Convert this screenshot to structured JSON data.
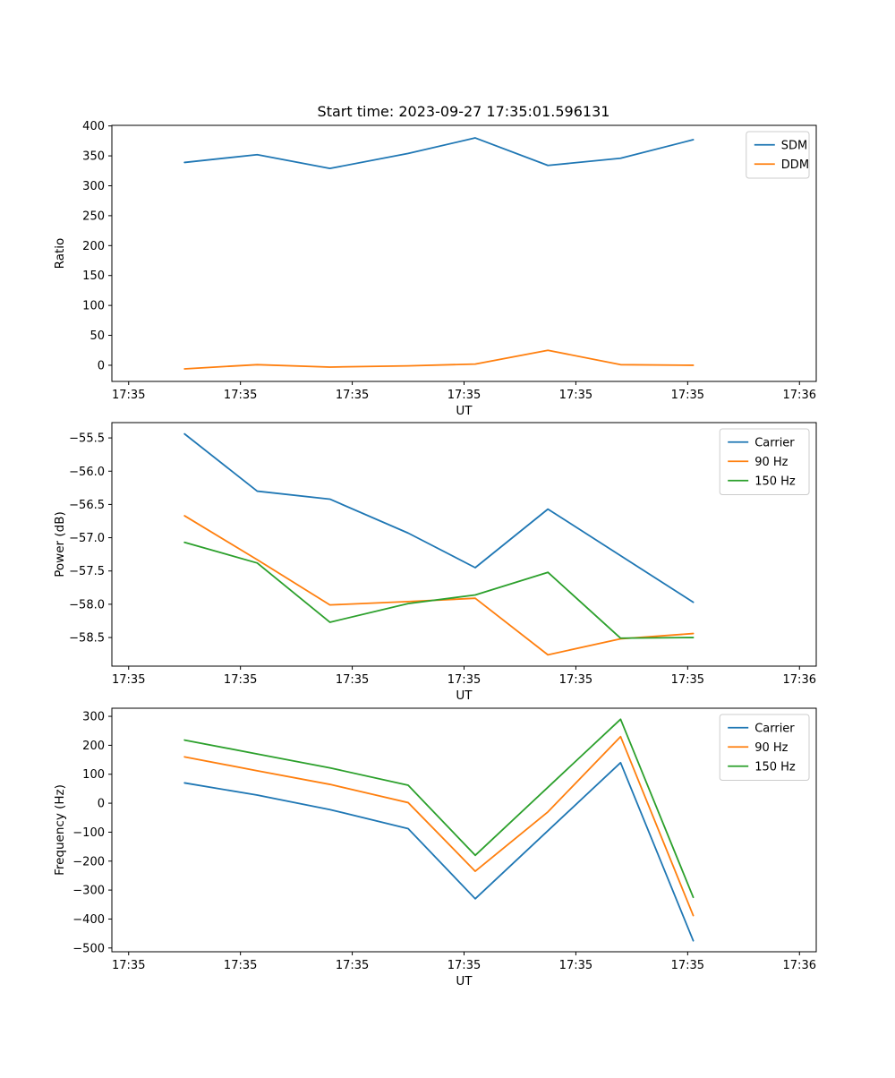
{
  "figure": {
    "title": "Start time: 2023-09-27 17:35:01.596131",
    "background": "#ffffff"
  },
  "colors": {
    "blue": "#1f77b4",
    "orange": "#ff7f0e",
    "green": "#2ca02c",
    "axis": "#000000",
    "legend_border": "#cccccc"
  },
  "chart_data": [
    {
      "id": "ratio",
      "type": "line",
      "title": "Start time: 2023-09-27 17:35:01.596131",
      "xlabel": "UT",
      "ylabel": "Ratio",
      "grid": false,
      "legend_position": "upper right",
      "xlim": [
        -1.5,
        61.5
      ],
      "ylim": [
        -27,
        401
      ],
      "xticks": {
        "values": [
          0,
          10,
          20,
          30,
          40,
          50,
          60
        ],
        "labels": [
          "17:35",
          "17:35",
          "17:35",
          "17:35",
          "17:35",
          "17:35",
          "17:36"
        ]
      },
      "yticks": {
        "values": [
          0,
          50,
          100,
          150,
          200,
          250,
          300,
          350,
          400
        ],
        "labels": [
          "0",
          "50",
          "100",
          "150",
          "200",
          "250",
          "300",
          "350",
          "400"
        ]
      },
      "x": [
        5,
        11.5,
        18,
        25,
        31,
        37.5,
        44,
        50.5
      ],
      "series": [
        {
          "name": "SDM",
          "color": "#1f77b4",
          "values": [
            339,
            352,
            329,
            354,
            380,
            334,
            346,
            377
          ]
        },
        {
          "name": "DDM",
          "color": "#ff7f0e",
          "values": [
            -6,
            1,
            -3,
            -1,
            2,
            25,
            1,
            0
          ]
        }
      ]
    },
    {
      "id": "power",
      "type": "line",
      "title": "",
      "xlabel": "UT",
      "ylabel": "Power (dB)",
      "grid": false,
      "legend_position": "upper right",
      "xlim": [
        -1.5,
        61.5
      ],
      "ylim": [
        -58.93,
        -55.27
      ],
      "xticks": {
        "values": [
          0,
          10,
          20,
          30,
          40,
          50,
          60
        ],
        "labels": [
          "17:35",
          "17:35",
          "17:35",
          "17:35",
          "17:35",
          "17:35",
          "17:36"
        ]
      },
      "yticks": {
        "values": [
          -55.5,
          -56.0,
          -56.5,
          -57.0,
          -57.5,
          -58.0,
          -58.5
        ],
        "labels": [
          "−55.5",
          "−56.0",
          "−56.5",
          "−57.0",
          "−57.5",
          "−58.0",
          "−58.5"
        ]
      },
      "x": [
        5,
        11.5,
        18,
        25,
        31,
        37.5,
        44,
        50.5
      ],
      "series": [
        {
          "name": "Carrier",
          "color": "#1f77b4",
          "values": [
            -55.44,
            -56.3,
            -56.42,
            -56.93,
            -57.45,
            -56.57,
            -57.27,
            -57.97
          ]
        },
        {
          "name": "90 Hz",
          "color": "#ff7f0e",
          "values": [
            -56.67,
            -57.33,
            -58.01,
            -57.96,
            -57.91,
            -58.76,
            -58.52,
            -58.44
          ]
        },
        {
          "name": "150 Hz",
          "color": "#2ca02c",
          "values": [
            -57.07,
            -57.38,
            -58.27,
            -57.99,
            -57.86,
            -57.52,
            -58.51,
            -58.5
          ]
        }
      ]
    },
    {
      "id": "frequency",
      "type": "line",
      "title": "",
      "xlabel": "UT",
      "ylabel": "Frequency (Hz)",
      "grid": false,
      "legend_position": "upper right",
      "xlim": [
        -1.5,
        61.5
      ],
      "ylim": [
        -513,
        328
      ],
      "xticks": {
        "values": [
          0,
          10,
          20,
          30,
          40,
          50,
          60
        ],
        "labels": [
          "17:35",
          "17:35",
          "17:35",
          "17:35",
          "17:35",
          "17:35",
          "17:36"
        ]
      },
      "yticks": {
        "values": [
          300,
          200,
          100,
          0,
          -100,
          -200,
          -300,
          -400,
          -500
        ],
        "labels": [
          "300",
          "200",
          "100",
          "0",
          "−100",
          "−200",
          "−300",
          "−400",
          "−500"
        ]
      },
      "x": [
        5,
        11.5,
        18,
        25,
        31,
        37.5,
        44,
        50.5
      ],
      "series": [
        {
          "name": "Carrier",
          "color": "#1f77b4",
          "values": [
            70,
            28,
            -22,
            -88,
            -330,
            -95,
            140,
            -475
          ]
        },
        {
          "name": "90 Hz",
          "color": "#ff7f0e",
          "values": [
            160,
            112,
            65,
            2,
            -235,
            -30,
            230,
            -388
          ]
        },
        {
          "name": "150 Hz",
          "color": "#2ca02c",
          "values": [
            218,
            170,
            122,
            62,
            -180,
            55,
            290,
            -325
          ]
        }
      ]
    }
  ]
}
